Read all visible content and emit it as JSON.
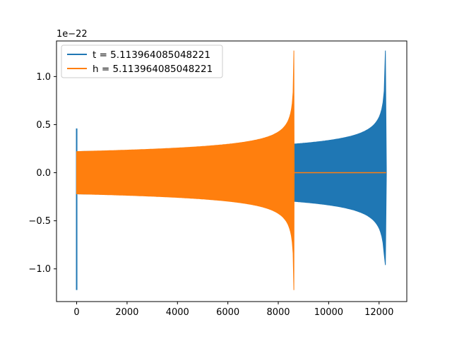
{
  "chart_data": {
    "type": "line",
    "title": "",
    "xlabel": "",
    "ylabel": "",
    "y_offset_text": "1e−22",
    "xlim": [
      -800,
      13100
    ],
    "ylim": [
      -1.34,
      1.37
    ],
    "x_ticks": [
      0,
      2000,
      4000,
      6000,
      8000,
      10000,
      12000
    ],
    "x_tick_labels": [
      "0",
      "2000",
      "4000",
      "6000",
      "8000",
      "10000",
      "12000"
    ],
    "y_ticks": [
      -1.0,
      -0.5,
      0.0,
      0.5,
      1.0
    ],
    "y_tick_labels": [
      "−1.0",
      "−0.5",
      "0.0",
      "0.5",
      "1.0"
    ],
    "grid": false,
    "legend_position": "upper-left",
    "series": [
      {
        "name": "t = 5.113964085048221",
        "color": "#1f77b4",
        "envelope": {
          "start_x": 0,
          "end_x": 12280,
          "start_spike_max": 0.46,
          "start_spike_min": -1.22,
          "start_amplitude_upper": 0.22,
          "start_amplitude_lower": -0.22,
          "merger_x": 12250,
          "peak_max": 1.27,
          "peak_min": -0.96,
          "ringdown_end_x": 12290
        }
      },
      {
        "name": "h = 5.113964085048221",
        "color": "#ff7f0e",
        "envelope": {
          "start_x": 0,
          "end_x": 8630,
          "start_amplitude_upper": 0.22,
          "start_amplitude_lower": -0.22,
          "merger_x": 8620,
          "peak_max": 1.27,
          "peak_min": -1.22,
          "after_merger_value": 0.0,
          "flat_end_x": 12280
        }
      }
    ]
  }
}
